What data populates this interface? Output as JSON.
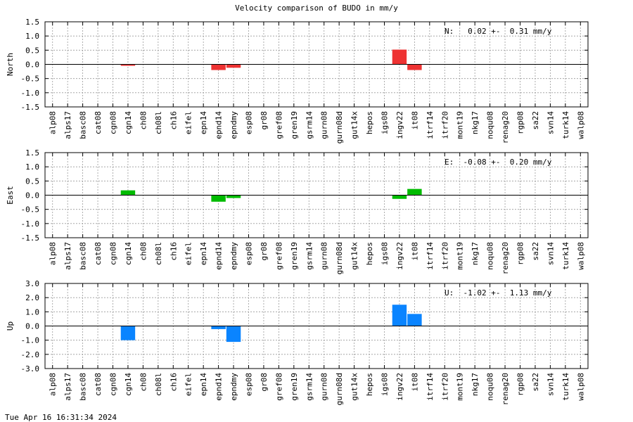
{
  "title": "Velocity comparison of BUDO in mm/y",
  "timestamp": "Tue Apr 16 16:31:34 2024",
  "chart_data": [
    {
      "type": "bar",
      "ylabel": "North",
      "ylim": [
        -1.5,
        1.5
      ],
      "yticks": [
        "1.5",
        "1.0",
        "0.5",
        "0.0",
        "-0.5",
        "-1.0",
        "-1.5"
      ],
      "grid": true,
      "color": "#ee3333",
      "annotation": "N:   0.02 +-  0.31 mm/y",
      "categories": [
        "alp08",
        "alps17",
        "basc08",
        "cat08",
        "cgn08",
        "cgn14",
        "ch08",
        "ch08l",
        "ch16",
        "eifel",
        "epn14",
        "epnd14",
        "epndmy",
        "esp08",
        "gr08",
        "gref08",
        "gren19",
        "gsrm14",
        "gurn08",
        "gurn08d",
        "gut14x",
        "hepos",
        "igs08",
        "ingv22",
        "it08",
        "itrf14",
        "itrf20",
        "mont19",
        "nkg17",
        "noqu08",
        "renag20",
        "rgp08",
        "sa22",
        "svn14",
        "turk14",
        "walp08"
      ],
      "values": [
        0,
        0,
        0,
        0,
        0,
        -0.05,
        0,
        0,
        0,
        0,
        0,
        -0.2,
        -0.12,
        0,
        0,
        0,
        0,
        0,
        0,
        0,
        0,
        0,
        0,
        0.52,
        -0.2,
        0,
        0,
        0,
        0,
        0,
        0,
        0,
        0,
        0,
        0,
        0
      ]
    },
    {
      "type": "bar",
      "ylabel": "East",
      "ylim": [
        -1.5,
        1.5
      ],
      "yticks": [
        "1.5",
        "1.0",
        "0.5",
        "0.0",
        "-0.5",
        "-1.0",
        "-1.5"
      ],
      "grid": true,
      "color": "#00bb00",
      "annotation": "E:  -0.08 +-  0.20 mm/y",
      "categories": [
        "alp08",
        "alps17",
        "basc08",
        "cat08",
        "cgn08",
        "cgn14",
        "ch08",
        "ch08l",
        "ch16",
        "eifel",
        "epn14",
        "epnd14",
        "epndmy",
        "esp08",
        "gr08",
        "gref08",
        "gren19",
        "gsrm14",
        "gurn08",
        "gurn08d",
        "gut14x",
        "hepos",
        "igs08",
        "ingv22",
        "it08",
        "itrf14",
        "itrf20",
        "mont19",
        "nkg17",
        "noqu08",
        "renag20",
        "rgp08",
        "sa22",
        "svn14",
        "turk14",
        "walp08"
      ],
      "values": [
        0,
        0,
        0,
        0,
        0,
        0.17,
        0,
        0,
        0,
        0,
        0,
        -0.23,
        -0.1,
        0,
        0,
        0,
        0,
        0,
        0,
        0,
        0,
        0,
        0,
        -0.13,
        0.22,
        0,
        0,
        0,
        0,
        0,
        0,
        0,
        0,
        0,
        0,
        0
      ]
    },
    {
      "type": "bar",
      "ylabel": "Up",
      "ylim": [
        -3.0,
        3.0
      ],
      "yticks": [
        "3.0",
        "2.0",
        "1.0",
        "0.0",
        "-1.0",
        "-2.0",
        "-3.0"
      ],
      "grid": true,
      "color": "#0a84ff",
      "annotation": "U:  -1.02 +-  1.13 mm/y",
      "categories": [
        "alp08",
        "alps17",
        "basc08",
        "cat08",
        "cgn08",
        "cgn14",
        "ch08",
        "ch08l",
        "ch16",
        "eifel",
        "epn14",
        "epnd14",
        "epndmy",
        "esp08",
        "gr08",
        "gref08",
        "gren19",
        "gsrm14",
        "gurn08",
        "gurn08d",
        "gut14x",
        "hepos",
        "igs08",
        "ingv22",
        "it08",
        "itrf14",
        "itrf20",
        "mont19",
        "nkg17",
        "noqu08",
        "renag20",
        "rgp08",
        "sa22",
        "svn14",
        "turk14",
        "walp08"
      ],
      "values": [
        0,
        0,
        0,
        0,
        0,
        -1.0,
        0,
        0,
        0,
        0,
        0,
        -0.22,
        -1.12,
        0,
        0,
        0,
        0,
        0,
        0,
        0,
        0,
        0,
        0,
        1.5,
        0.85,
        0,
        0,
        0,
        0,
        0,
        0,
        0,
        0,
        0,
        0,
        0
      ]
    }
  ]
}
